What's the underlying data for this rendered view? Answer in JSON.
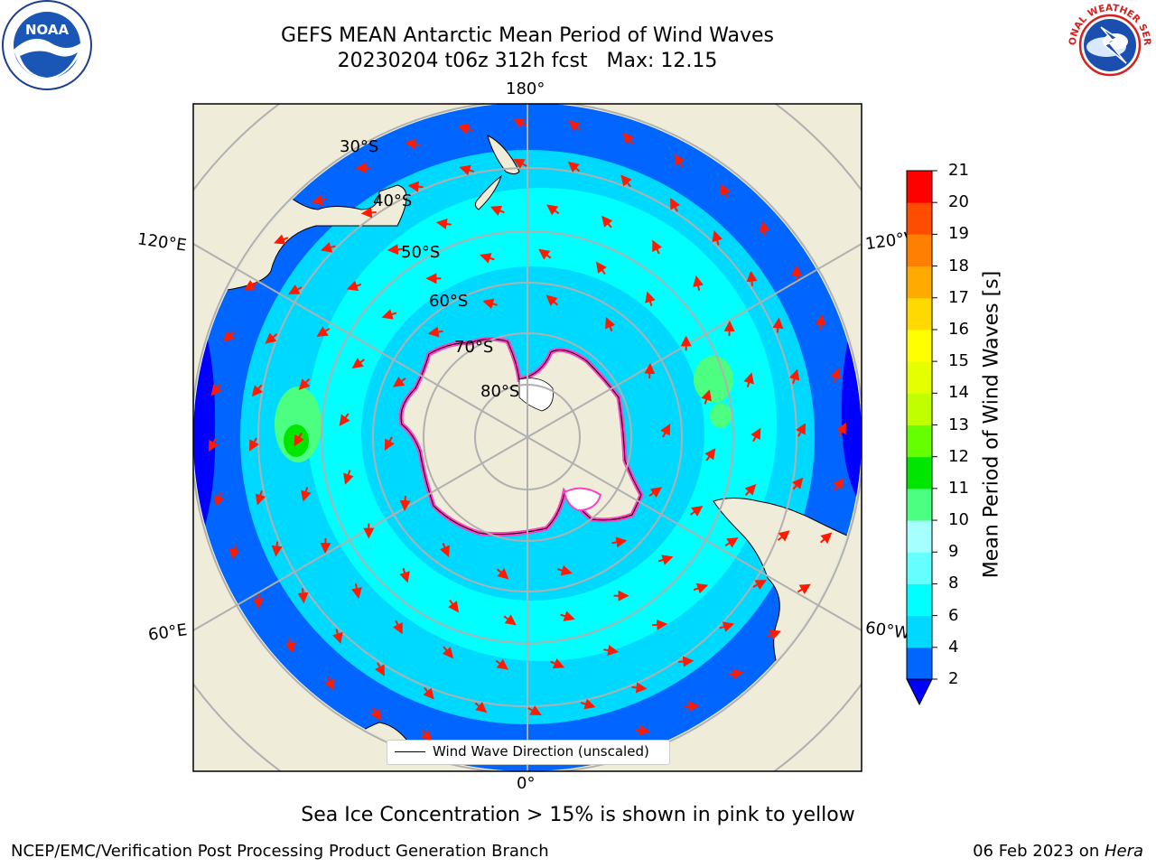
{
  "title": {
    "line1": "GEFS MEAN Antarctic Mean Period of Wind Waves",
    "line2": "20230204 t06z 312h fcst   Max: 12.15"
  },
  "graticule": {
    "lon_labels": [
      "180°",
      "120°E",
      "120°W",
      "60°E",
      "60°W",
      "0°"
    ],
    "lat_labels": [
      "30°S",
      "40°S",
      "50°S",
      "60°S",
      "70°S",
      "80°S"
    ]
  },
  "colorbar": {
    "title": "Mean Period of Wind Waves [s]",
    "ticks": [
      "2",
      "4",
      "6",
      "8",
      "9",
      "10",
      "11",
      "12",
      "13",
      "14",
      "15",
      "16",
      "17",
      "18",
      "19",
      "20",
      "21"
    ],
    "colors": [
      "#0000ff",
      "#0066ff",
      "#00d9ff",
      "#00ffff",
      "#66ffff",
      "#a6ffff",
      "#4dff80",
      "#00e600",
      "#66ff00",
      "#bfff00",
      "#e6ff00",
      "#ffff00",
      "#ffd900",
      "#ffaa00",
      "#ff8000",
      "#ff4d00",
      "#ff0000"
    ],
    "extend_color": "#0000ff"
  },
  "legend": {
    "label": "Wind Wave Direction (unscaled)"
  },
  "ice_note": "Sea Ice Concentration > 15% is shown in pink to yellow",
  "footer": {
    "left": "NCEP/EMC/Verification Post Processing Product Generation Branch",
    "date": "06 Feb 2023 on ",
    "host": "Hera"
  },
  "logos": {
    "noaa_text": "NOAA",
    "nws_text": "NATIONAL WEATHER SERVICE"
  }
}
